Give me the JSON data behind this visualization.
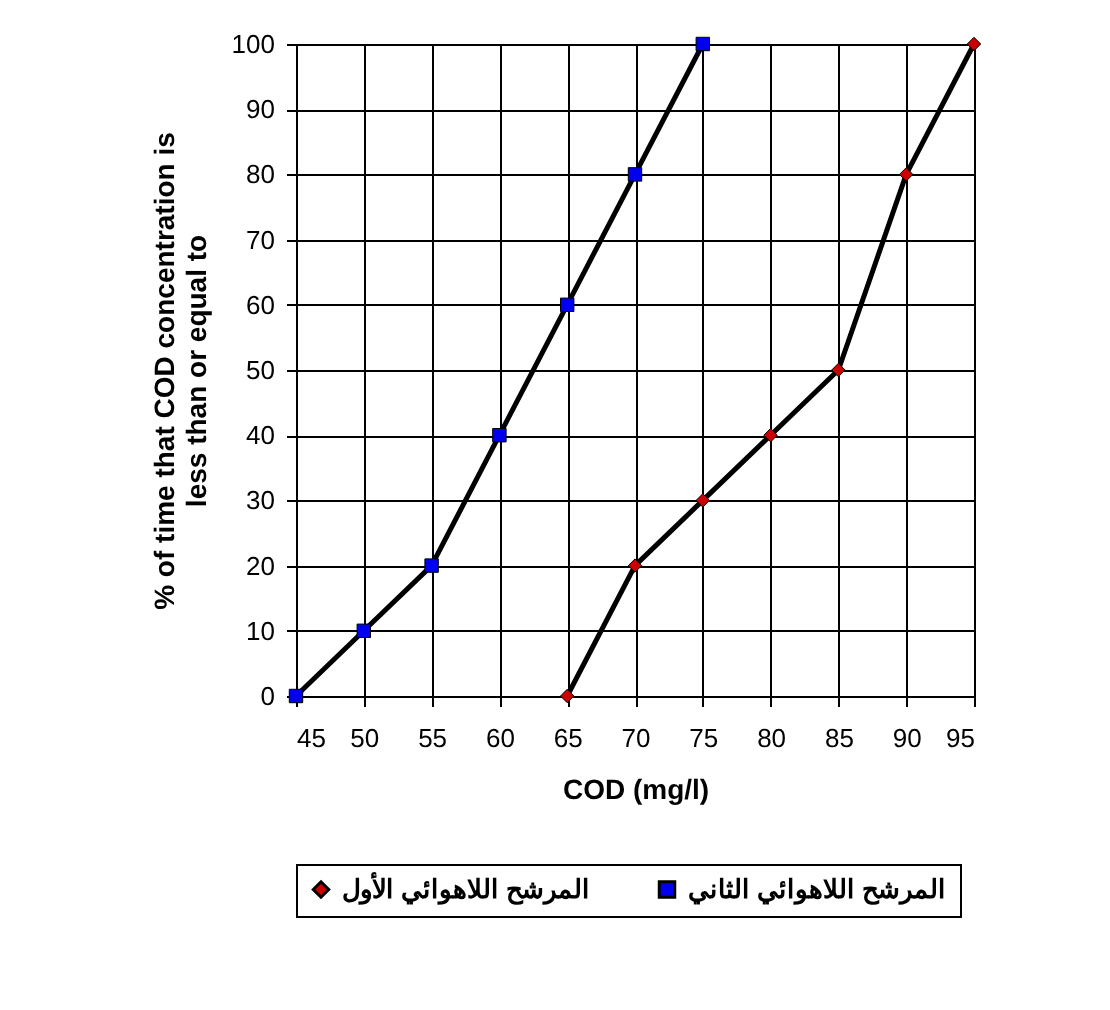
{
  "chart_data": {
    "type": "line",
    "xlabel": "COD (mg/l)",
    "ylabel": "% of time that COD concentration is\nless than or equal to",
    "xlim": [
      45,
      95
    ],
    "xticks": [
      45,
      50,
      55,
      60,
      65,
      70,
      75,
      80,
      85,
      90,
      95
    ],
    "ylim": [
      0,
      100
    ],
    "yticks": [
      0,
      10,
      20,
      30,
      40,
      50,
      60,
      70,
      80,
      90,
      100
    ],
    "grid": true,
    "legend": "bottom",
    "line_style": "solid",
    "series": [
      {
        "name": "المرشح اللاهوائي الأول",
        "color": "#cc0000",
        "marker": "diamond",
        "x": [
          65,
          70,
          75,
          80,
          85,
          90,
          95
        ],
        "values": [
          0,
          20,
          30,
          40,
          50,
          80,
          100
        ]
      },
      {
        "name": "المرشح اللاهوائي الثاني",
        "color": "#0000ee",
        "marker": "square",
        "x": [
          45,
          50,
          55,
          60,
          65,
          70,
          75
        ],
        "values": [
          0,
          10,
          20,
          40,
          60,
          80,
          100
        ]
      }
    ]
  }
}
